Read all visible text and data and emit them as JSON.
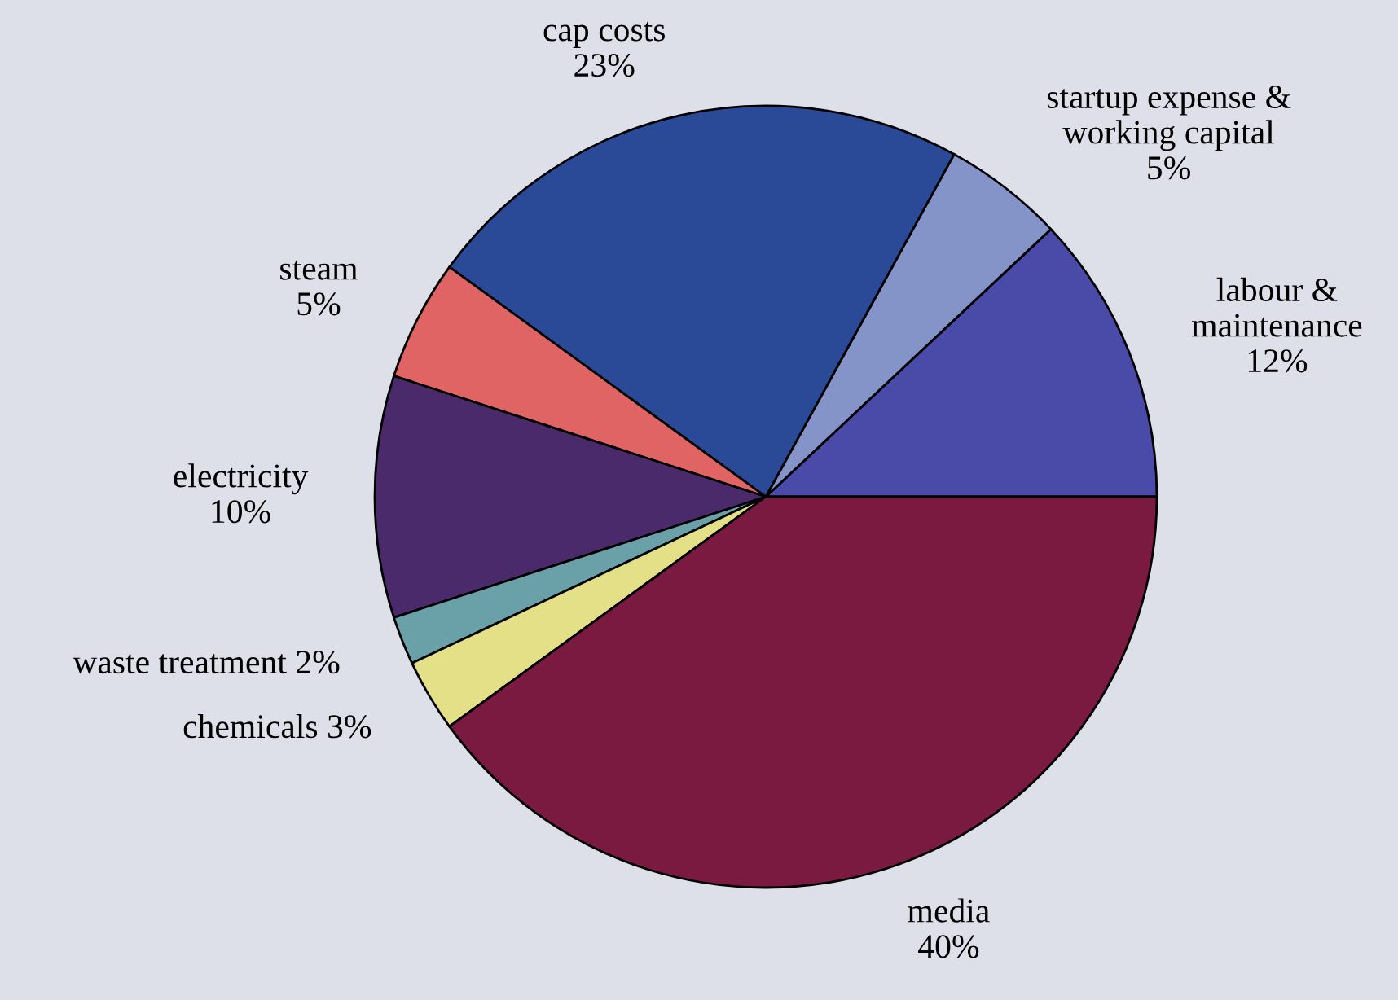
{
  "chart_data": {
    "type": "pie",
    "categories": [
      "labour &\nmaintenance",
      "startup expense &\nworking capital",
      "cap costs",
      "steam",
      "electricity",
      "waste treatment",
      "chemicals",
      "media"
    ],
    "values": [
      12,
      5,
      23,
      5,
      10,
      2,
      3,
      40
    ],
    "value_labels": [
      "12%",
      "5%",
      "23%",
      "5%",
      "10%",
      "2%",
      "3%",
      "40%"
    ],
    "colors": [
      "#4a4aa8",
      "#8494c8",
      "#2a4a98",
      "#e06464",
      "#4a2a6a",
      "#6aa0a8",
      "#e4e088",
      "#7a1a40"
    ],
    "legend": false
  }
}
